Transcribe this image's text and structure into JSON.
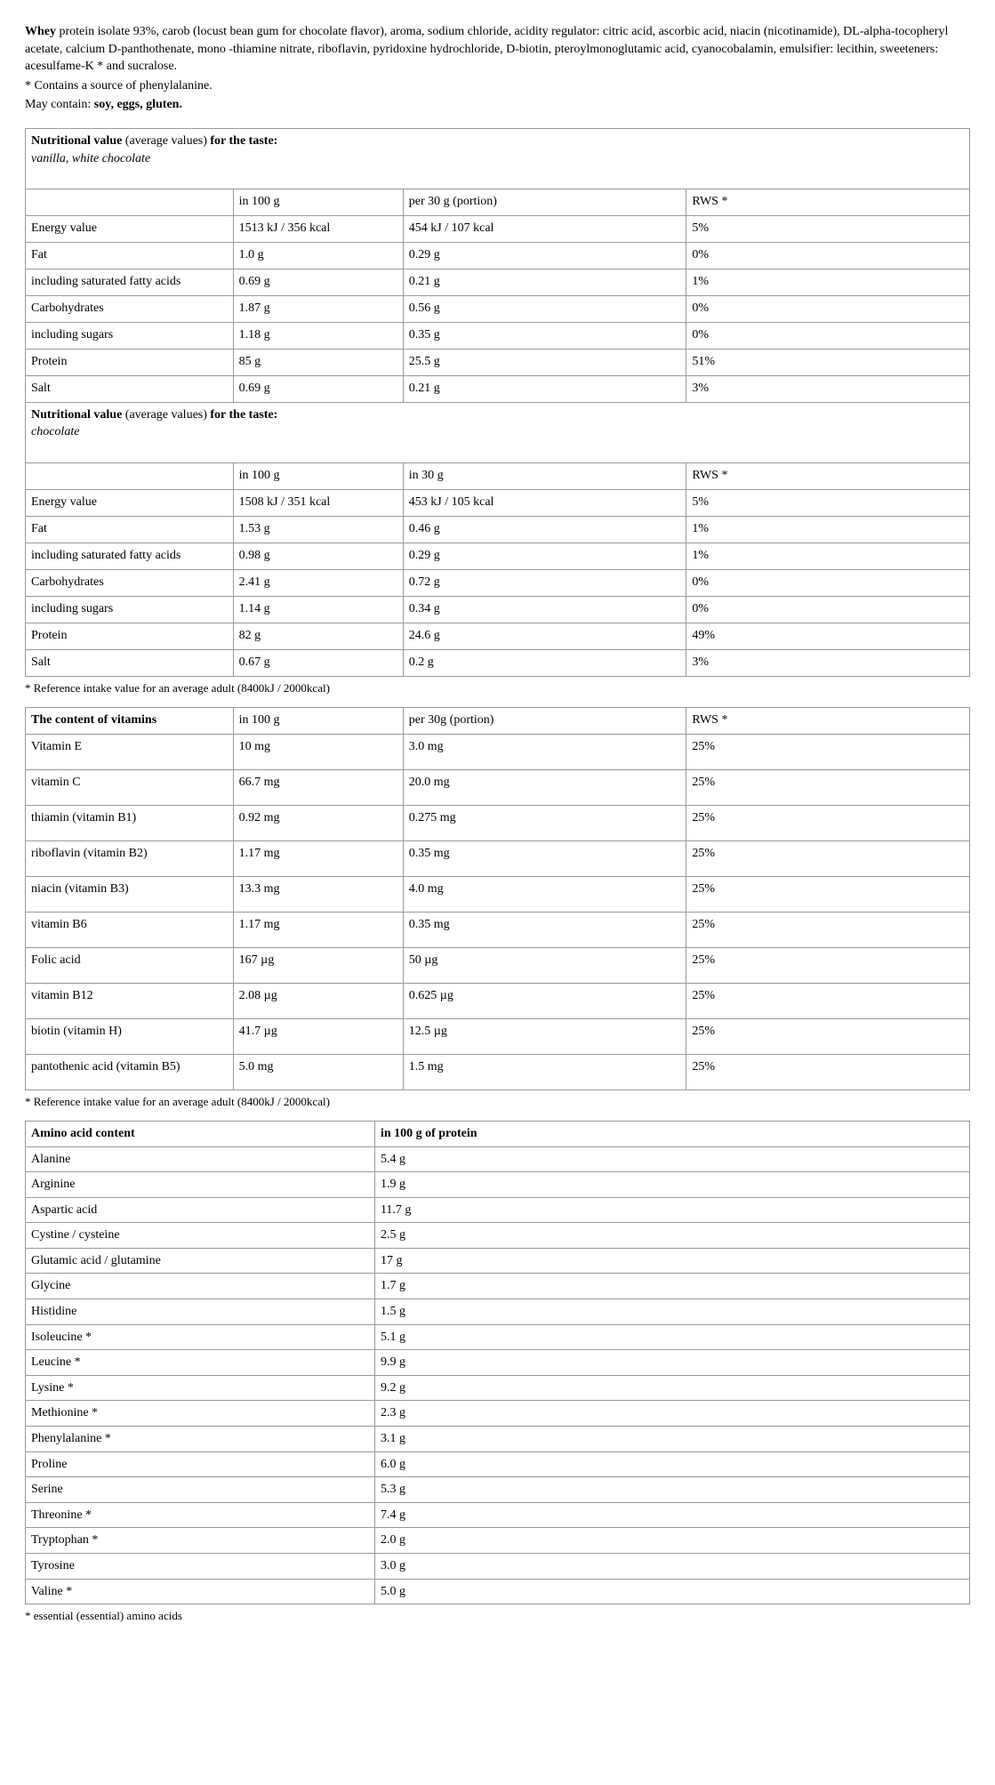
{
  "intro": {
    "line1_bold": "Whey",
    "line1_rest": " protein isolate 93%, carob (locust bean gum for chocolate flavor), aroma, sodium chloride, acidity regulator: citric acid, ascorbic acid, niacin (nicotinamide), DL-alpha-tocopheryl acetate, calcium D-panthothenate, mono -thiamine nitrate, riboflavin, pyridoxine hydrochloride, D-biotin, pteroylmonoglutamic acid, cyanocobalamin, emulsifier: lecithin, sweeteners: acesulfame-K * and sucralose.",
    "line2": "* Contains a source of phenylalanine.",
    "line3_prefix": "May contain: ",
    "line3_bold": "soy, eggs, gluten."
  },
  "t1": {
    "head_bold1": "Nutritional value",
    "head_mid": " (average values) ",
    "head_bold2": "for the taste:",
    "flavor": "vanilla, white chocolate",
    "cols": [
      "",
      "in 100 g",
      "per 30 g (portion)",
      "RWS *"
    ],
    "rows": [
      [
        "Energy value",
        "1513 kJ / 356 kcal",
        "454 kJ / 107 kcal",
        "5%"
      ],
      [
        "Fat",
        "1.0 g",
        "0.29 g",
        "0%"
      ],
      [
        "including saturated fatty acids",
        "0.69 g",
        "0.21 g",
        "1%"
      ],
      [
        "Carbohydrates",
        "1.87 g",
        "0.56 g",
        "0%"
      ],
      [
        "including sugars",
        "1.18 g",
        "0.35 g",
        "0%"
      ],
      [
        "Protein",
        "85 g",
        "25.5 g",
        "51%"
      ],
      [
        "Salt",
        "0.69 g",
        "0.21 g",
        "3%"
      ]
    ]
  },
  "t2": {
    "head_bold1": "Nutritional value",
    "head_mid": " (average values) ",
    "head_bold2": "for the taste:",
    "flavor": "chocolate",
    "cols": [
      "",
      "in 100 g",
      "in 30 g",
      "RWS *"
    ],
    "rows": [
      [
        "Energy value",
        "1508 kJ / 351 kcal",
        "453 kJ / 105 kcal",
        "5%"
      ],
      [
        "Fat",
        "1.53 g",
        "0.46 g",
        "1%"
      ],
      [
        "including saturated fatty acids",
        "0.98 g",
        "0.29 g",
        "1%"
      ],
      [
        "Carbohydrates",
        "2.41 g",
        "0.72 g",
        "0%"
      ],
      [
        "including sugars",
        "1.14 g",
        "0.34 g",
        "0%"
      ],
      [
        "Protein",
        "82 g",
        "24.6 g",
        "49%"
      ],
      [
        "Salt",
        "0.67 g",
        "0.2 g",
        "3%"
      ]
    ]
  },
  "ref_note": "* Reference intake value for an average adult (8400kJ / 2000kcal)",
  "t3": {
    "cols": [
      "The content of vitamins",
      "in 100 g",
      "per 30g (portion)",
      "RWS *"
    ],
    "rows": [
      [
        "Vitamin E",
        "10 mg",
        "3.0 mg",
        "25%"
      ],
      [
        "vitamin C",
        "66.7 mg",
        "20.0 mg",
        "25%"
      ],
      [
        "thiamin (vitamin B1)",
        "0.92 mg",
        "0.275 mg",
        "25%"
      ],
      [
        "riboflavin (vitamin B2)",
        "1.17 mg",
        "0.35 mg",
        "25%"
      ],
      [
        "niacin (vitamin B3)",
        "13.3 mg",
        "4.0 mg",
        "25%"
      ],
      [
        "vitamin B6",
        "1.17 mg",
        "0.35 mg",
        "25%"
      ],
      [
        "Folic acid",
        "167 µg",
        "50 µg",
        "25%"
      ],
      [
        "vitamin B12",
        "2.08 µg",
        "0.625 µg",
        "25%"
      ],
      [
        "biotin (vitamin H)",
        "41.7 µg",
        "12.5 µg",
        "25%"
      ],
      [
        "pantothenic acid (vitamin B5)",
        "5.0 mg",
        "1.5 mg",
        "25%"
      ]
    ]
  },
  "t4": {
    "cols": [
      "Amino acid content",
      "in 100 g of protein"
    ],
    "rows": [
      [
        "Alanine",
        "5.4 g"
      ],
      [
        "Arginine",
        "1.9 g"
      ],
      [
        "Aspartic acid",
        "11.7 g"
      ],
      [
        "Cystine / cysteine",
        "2.5 g"
      ],
      [
        "Glutamic acid / glutamine",
        "17 g"
      ],
      [
        "Glycine",
        "1.7 g"
      ],
      [
        "Histidine",
        "1.5 g"
      ],
      [
        "Isoleucine *",
        "5.1 g"
      ],
      [
        "Leucine *",
        "9.9 g"
      ],
      [
        "Lysine *",
        "9.2 g"
      ],
      [
        "Methionine *",
        "2.3 g"
      ],
      [
        "Phenylalanine *",
        "3.1 g"
      ],
      [
        "Proline",
        "6.0 g"
      ],
      [
        "Serine",
        "5.3 g"
      ],
      [
        "Threonine *",
        "7.4 g"
      ],
      [
        "Tryptophan *",
        "2.0 g"
      ],
      [
        "Tyrosine",
        "3.0 g"
      ],
      [
        "Valine *",
        "5.0 g"
      ]
    ]
  },
  "amino_note": "* essential (essential) amino acids"
}
